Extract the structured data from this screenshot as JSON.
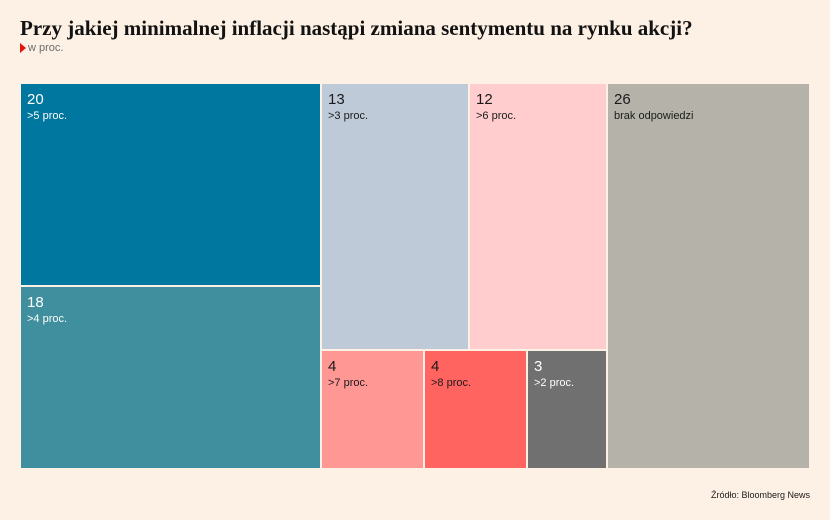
{
  "title": "Przy jakiej minimalnej inflacji nastąpi zmiana sentymentu na rynku akcji?",
  "subtitle": "w proc.",
  "source": "Źródło: Bloomberg News",
  "chart_data": {
    "type": "treemap",
    "unit": "w proc.",
    "items": [
      {
        "label": ">5 proc.",
        "value": 20,
        "color": "#00779e"
      },
      {
        "label": ">4 proc.",
        "value": 18,
        "color": "#3f8f9e"
      },
      {
        "label": ">3 proc.",
        "value": 13,
        "color": "#bfcad9"
      },
      {
        "label": ">6 proc.",
        "value": 12,
        "color": "#ffcdcd"
      },
      {
        "label": ">7 proc.",
        "value": 4,
        "color": "#ff9794"
      },
      {
        "label": ">8 proc.",
        "value": 4,
        "color": "#ff6460"
      },
      {
        "label": ">2 proc.",
        "value": 3,
        "color": "#707070"
      },
      {
        "label": "brak odpowiedzi",
        "value": 26,
        "color": "#b5b3a9"
      }
    ]
  }
}
